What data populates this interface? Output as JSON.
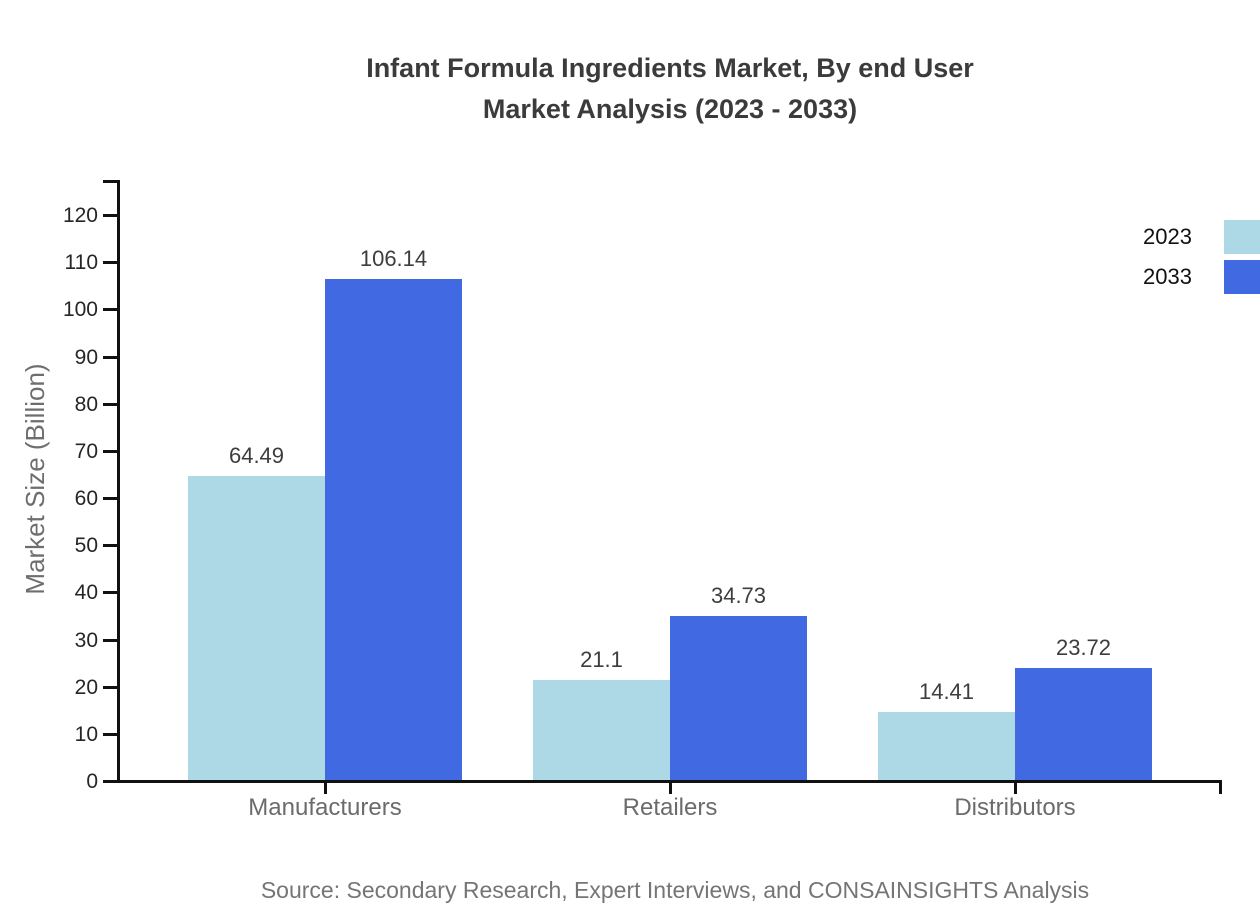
{
  "title": {
    "line1": "Infant Formula Ingredients Market, By end User",
    "line2": "Market Analysis (2023 - 2033)"
  },
  "source": "Source: Secondary Research, Expert Interviews, and CONSAINSIGHTS Analysis",
  "chart_data": {
    "type": "bar",
    "title": "Infant Formula Ingredients Market, By end User Market Analysis (2023 - 2033)",
    "categories": [
      "Manufacturers",
      "Retailers",
      "Distributors"
    ],
    "series": [
      {
        "name": "2023",
        "color": "#ADD8E6",
        "values": [
          64.49,
          21.1,
          14.41
        ]
      },
      {
        "name": "2033",
        "color": "#4169E1",
        "values": [
          106.14,
          34.73,
          23.72
        ]
      }
    ],
    "xlabel": "",
    "ylabel": "Market Size (Billion)",
    "ylim": [
      0,
      120
    ],
    "yticks": [
      0,
      10,
      20,
      30,
      40,
      50,
      60,
      70,
      80,
      90,
      100,
      110,
      120
    ],
    "grid": false,
    "legend_position": "right",
    "value_labels_shown": true
  }
}
